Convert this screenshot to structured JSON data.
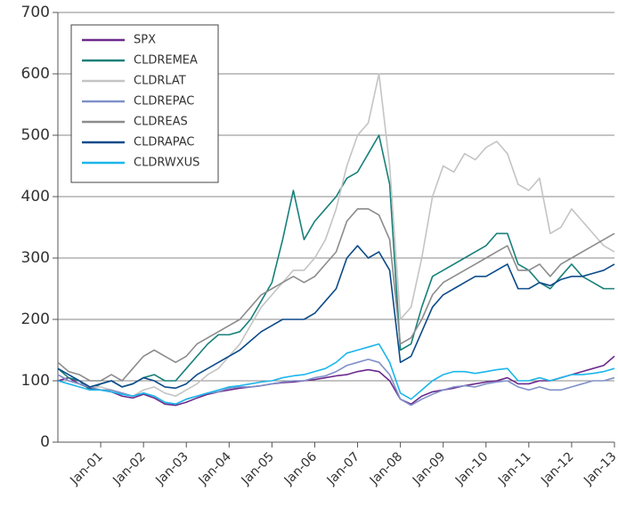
{
  "chart_data": {
    "type": "line",
    "categories": [
      null,
      null,
      null,
      null,
      "Jan-01",
      null,
      null,
      null,
      "Jan-02",
      null,
      null,
      null,
      "Jan-03",
      null,
      null,
      null,
      "Jan-04",
      null,
      null,
      null,
      "Jan-05",
      null,
      null,
      null,
      "Jan-06",
      null,
      null,
      null,
      "Jan-07",
      null,
      null,
      null,
      "Jan-08",
      null,
      null,
      null,
      "Jan-09",
      null,
      null,
      null,
      "Jan-10",
      null,
      null,
      null,
      "Jan-11",
      null,
      null,
      null,
      "Jan-12",
      null,
      null,
      null,
      "Jan-13"
    ],
    "series": [
      {
        "name": "SPX",
        "color": "#6b2a8c",
        "values": [
          100,
          105,
          95,
          88,
          85,
          82,
          75,
          72,
          78,
          72,
          62,
          60,
          65,
          72,
          78,
          82,
          85,
          88,
          90,
          92,
          95,
          97,
          98,
          100,
          102,
          105,
          108,
          110,
          115,
          118,
          115,
          100,
          70,
          62,
          75,
          82,
          85,
          88,
          92,
          95,
          98,
          100,
          105,
          95,
          95,
          100,
          100,
          105,
          110,
          115,
          120,
          125,
          140
        ]
      },
      {
        "name": "CLDREMEA",
        "color": "#17807a",
        "values": [
          120,
          105,
          100,
          85,
          95,
          100,
          90,
          95,
          105,
          110,
          100,
          100,
          120,
          140,
          160,
          175,
          175,
          180,
          200,
          230,
          260,
          330,
          410,
          330,
          360,
          380,
          400,
          430,
          440,
          470,
          500,
          420,
          150,
          160,
          220,
          270,
          280,
          290,
          300,
          310,
          320,
          340,
          340,
          290,
          280,
          260,
          250,
          270,
          290,
          270,
          260,
          250,
          250
        ]
      },
      {
        "name": "CLDRLAT",
        "color": "#c4c4c4",
        "values": [
          110,
          100,
          95,
          90,
          90,
          85,
          80,
          75,
          85,
          90,
          80,
          75,
          85,
          95,
          110,
          120,
          140,
          160,
          190,
          220,
          240,
          260,
          280,
          280,
          300,
          330,
          380,
          450,
          500,
          520,
          600,
          450,
          200,
          220,
          300,
          400,
          450,
          440,
          470,
          460,
          480,
          490,
          470,
          420,
          410,
          430,
          340,
          350,
          380,
          360,
          340,
          320,
          310
        ]
      },
      {
        "name": "CLDREPAC",
        "color": "#8090c8",
        "values": [
          110,
          100,
          95,
          90,
          85,
          85,
          80,
          75,
          80,
          75,
          65,
          62,
          70,
          75,
          80,
          82,
          88,
          90,
          90,
          92,
          95,
          98,
          100,
          100,
          105,
          108,
          115,
          125,
          130,
          135,
          130,
          110,
          70,
          60,
          70,
          78,
          85,
          90,
          92,
          90,
          95,
          98,
          100,
          90,
          85,
          90,
          85,
          85,
          90,
          95,
          100,
          100,
          105
        ]
      },
      {
        "name": "CLDREAS",
        "color": "#8c8c8c",
        "values": [
          130,
          115,
          110,
          100,
          100,
          110,
          100,
          120,
          140,
          150,
          140,
          130,
          140,
          160,
          170,
          180,
          190,
          200,
          220,
          240,
          250,
          260,
          270,
          260,
          270,
          290,
          310,
          360,
          380,
          380,
          370,
          330,
          160,
          170,
          200,
          240,
          260,
          270,
          280,
          290,
          300,
          310,
          320,
          280,
          280,
          290,
          270,
          290,
          300,
          310,
          320,
          330,
          340
        ]
      },
      {
        "name": "CLDRAPAC",
        "color": "#0b4a8a",
        "values": [
          120,
          110,
          100,
          90,
          95,
          100,
          90,
          95,
          105,
          100,
          90,
          88,
          95,
          110,
          120,
          130,
          140,
          150,
          165,
          180,
          190,
          200,
          200,
          200,
          210,
          230,
          250,
          300,
          320,
          300,
          310,
          280,
          130,
          140,
          180,
          220,
          240,
          250,
          260,
          270,
          270,
          280,
          290,
          250,
          250,
          260,
          255,
          265,
          270,
          270,
          275,
          280,
          290
        ]
      },
      {
        "name": "CLDRWXUS",
        "color": "#1bb6ea",
        "values": [
          100,
          95,
          90,
          85,
          85,
          82,
          78,
          75,
          80,
          75,
          65,
          62,
          70,
          75,
          80,
          85,
          90,
          92,
          95,
          98,
          100,
          105,
          108,
          110,
          115,
          120,
          130,
          145,
          150,
          155,
          160,
          130,
          80,
          70,
          85,
          100,
          110,
          115,
          115,
          112,
          115,
          118,
          120,
          100,
          100,
          105,
          100,
          105,
          110,
          110,
          112,
          115,
          120
        ]
      }
    ],
    "ylim": [
      0,
      700
    ],
    "yticks": [
      0,
      100,
      200,
      300,
      400,
      500,
      600,
      700
    ],
    "grid": true,
    "legend": "upper left"
  }
}
